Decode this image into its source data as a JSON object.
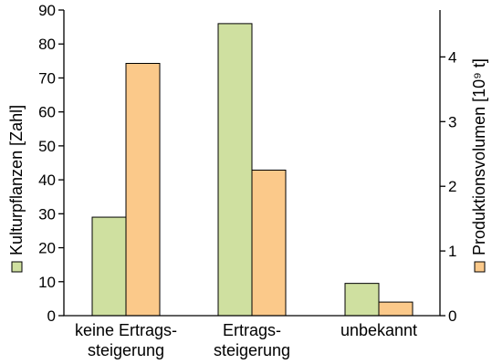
{
  "chart_data": {
    "type": "bar",
    "categories": [
      [
        "keine Ertrags-",
        "steigerung"
      ],
      [
        "Ertrags-",
        "steigerung"
      ],
      [
        "unbekannt"
      ]
    ],
    "series": [
      {
        "values": [
          29,
          86,
          9.5
        ],
        "color": "#cfe0a0",
        "axis": "left"
      },
      {
        "values": [
          3.9,
          2.25,
          0.21
        ],
        "color": "#fbc98a",
        "axis": "right"
      }
    ],
    "ylabel_left": "Kulturpflanzen [Zahl]",
    "ylabel_right": "Produktionsvolumen [10⁹ t]",
    "ylim_left": [
      0,
      90
    ],
    "yticks_left": [
      0,
      10,
      20,
      30,
      40,
      50,
      60,
      70,
      80,
      90
    ],
    "ylim_right": [
      0,
      4.725
    ],
    "yticks_right": [
      0,
      1,
      2,
      3,
      4
    ],
    "grid": false,
    "legend": "swatches-in-axis-titles"
  }
}
